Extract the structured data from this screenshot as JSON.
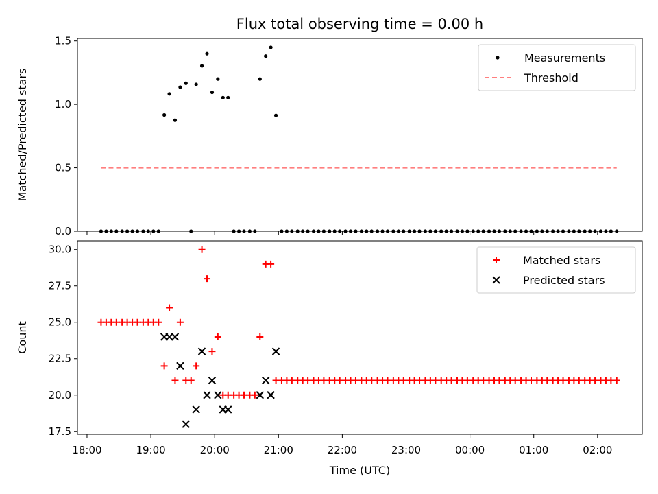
{
  "title": "Flux total observing time = 0.00 h",
  "xlabel": "Time (UTC)",
  "x_ticks": [
    "18:00",
    "19:00",
    "20:00",
    "21:00",
    "22:00",
    "23:00",
    "00:00",
    "01:00",
    "02:00"
  ],
  "chart_data": [
    {
      "type": "scatter",
      "ylabel": "Matched/Predicted stars",
      "ylim": [
        0,
        1.52
      ],
      "y_ticks": [
        "0.0",
        "0.5",
        "1.0",
        "1.5"
      ],
      "x_unit": "hours after 18:00 UTC",
      "legend_position": "top-right",
      "series": [
        {
          "name": "Measurements",
          "marker": "dot",
          "color": "#000000",
          "points": [
            [
              0.22,
              0
            ],
            [
              0.3,
              0
            ],
            [
              0.38,
              0
            ],
            [
              0.46,
              0
            ],
            [
              0.55,
              0
            ],
            [
              0.63,
              0
            ],
            [
              0.71,
              0
            ],
            [
              0.79,
              0
            ],
            [
              0.88,
              0
            ],
            [
              0.96,
              0
            ],
            [
              1.04,
              0
            ],
            [
              1.12,
              0
            ],
            [
              1.21,
              0.917
            ],
            [
              1.29,
              1.083
            ],
            [
              1.38,
              0.875
            ],
            [
              1.46,
              1.136
            ],
            [
              1.55,
              1.167
            ],
            [
              1.63,
              0
            ],
            [
              1.71,
              1.158
            ],
            [
              1.8,
              1.304
            ],
            [
              1.88,
              1.4
            ],
            [
              1.96,
              1.095
            ],
            [
              2.05,
              1.2
            ],
            [
              2.13,
              1.053
            ],
            [
              2.21,
              1.053
            ],
            [
              2.3,
              0
            ],
            [
              2.38,
              0
            ],
            [
              2.46,
              0
            ],
            [
              2.55,
              0
            ],
            [
              2.63,
              0
            ],
            [
              2.71,
              1.2
            ],
            [
              2.8,
              1.381
            ],
            [
              2.88,
              1.45
            ],
            [
              2.96,
              0.913
            ],
            [
              3.05,
              0
            ],
            [
              3.13,
              0
            ],
            [
              3.21,
              0
            ],
            [
              3.3,
              0
            ],
            [
              3.38,
              0
            ],
            [
              3.46,
              0
            ],
            [
              3.55,
              0
            ],
            [
              3.63,
              0
            ],
            [
              3.71,
              0
            ],
            [
              3.8,
              0
            ],
            [
              3.88,
              0
            ],
            [
              3.96,
              0
            ],
            [
              4.05,
              0
            ],
            [
              4.13,
              0
            ],
            [
              4.21,
              0
            ],
            [
              4.3,
              0
            ],
            [
              4.38,
              0
            ],
            [
              4.46,
              0
            ],
            [
              4.55,
              0
            ],
            [
              4.63,
              0
            ],
            [
              4.71,
              0
            ],
            [
              4.8,
              0
            ],
            [
              4.88,
              0
            ],
            [
              4.96,
              0
            ],
            [
              5.05,
              0
            ],
            [
              5.13,
              0
            ],
            [
              5.21,
              0
            ],
            [
              5.3,
              0
            ],
            [
              5.38,
              0
            ],
            [
              5.46,
              0
            ],
            [
              5.55,
              0
            ],
            [
              5.63,
              0
            ],
            [
              5.71,
              0
            ],
            [
              5.8,
              0
            ],
            [
              5.88,
              0
            ],
            [
              5.96,
              0
            ],
            [
              6.05,
              0
            ],
            [
              6.13,
              0
            ],
            [
              6.21,
              0
            ],
            [
              6.3,
              0
            ],
            [
              6.38,
              0
            ],
            [
              6.46,
              0
            ],
            [
              6.55,
              0
            ],
            [
              6.63,
              0
            ],
            [
              6.71,
              0
            ],
            [
              6.8,
              0
            ],
            [
              6.88,
              0
            ],
            [
              6.96,
              0
            ],
            [
              7.05,
              0
            ],
            [
              7.13,
              0
            ],
            [
              7.21,
              0
            ],
            [
              7.3,
              0
            ],
            [
              7.38,
              0
            ],
            [
              7.46,
              0
            ],
            [
              7.55,
              0
            ],
            [
              7.63,
              0
            ],
            [
              7.71,
              0
            ],
            [
              7.8,
              0
            ],
            [
              7.88,
              0
            ],
            [
              7.96,
              0
            ],
            [
              8.05,
              0
            ],
            [
              8.13,
              0
            ],
            [
              8.21,
              0
            ],
            [
              8.3,
              0
            ]
          ]
        },
        {
          "name": "Threshold",
          "type": "line",
          "style": "dashed",
          "color": "#ff7f7f",
          "x": [
            0.22,
            8.3
          ],
          "y": [
            0.5,
            0.5
          ]
        }
      ]
    },
    {
      "type": "scatter",
      "ylabel": "Count",
      "ylim": [
        17.3,
        30.6
      ],
      "y_ticks": [
        "17.5",
        "20.0",
        "22.5",
        "25.0",
        "27.5",
        "30.0"
      ],
      "x_unit": "hours after 18:00 UTC",
      "legend_position": "top-right",
      "series": [
        {
          "name": "Matched stars",
          "marker": "plus",
          "color": "#ff0000",
          "points": [
            [
              0.22,
              25
            ],
            [
              0.3,
              25
            ],
            [
              0.38,
              25
            ],
            [
              0.46,
              25
            ],
            [
              0.55,
              25
            ],
            [
              0.63,
              25
            ],
            [
              0.71,
              25
            ],
            [
              0.79,
              25
            ],
            [
              0.88,
              25
            ],
            [
              0.96,
              25
            ],
            [
              1.04,
              25
            ],
            [
              1.12,
              25
            ],
            [
              1.21,
              22
            ],
            [
              1.29,
              26
            ],
            [
              1.38,
              21
            ],
            [
              1.46,
              25
            ],
            [
              1.55,
              21
            ],
            [
              1.63,
              21
            ],
            [
              1.71,
              22
            ],
            [
              1.8,
              30
            ],
            [
              1.88,
              28
            ],
            [
              1.96,
              23
            ],
            [
              2.05,
              24
            ],
            [
              2.13,
              20
            ],
            [
              2.21,
              20
            ],
            [
              2.3,
              20
            ],
            [
              2.38,
              20
            ],
            [
              2.46,
              20
            ],
            [
              2.55,
              20
            ],
            [
              2.63,
              20
            ],
            [
              2.71,
              24
            ],
            [
              2.8,
              29
            ],
            [
              2.88,
              29
            ],
            [
              2.96,
              21
            ],
            [
              3.05,
              21
            ],
            [
              3.13,
              21
            ],
            [
              3.21,
              21
            ],
            [
              3.3,
              21
            ],
            [
              3.38,
              21
            ],
            [
              3.46,
              21
            ],
            [
              3.55,
              21
            ],
            [
              3.63,
              21
            ],
            [
              3.71,
              21
            ],
            [
              3.8,
              21
            ],
            [
              3.88,
              21
            ],
            [
              3.96,
              21
            ],
            [
              4.05,
              21
            ],
            [
              4.13,
              21
            ],
            [
              4.21,
              21
            ],
            [
              4.3,
              21
            ],
            [
              4.38,
              21
            ],
            [
              4.46,
              21
            ],
            [
              4.55,
              21
            ],
            [
              4.63,
              21
            ],
            [
              4.71,
              21
            ],
            [
              4.8,
              21
            ],
            [
              4.88,
              21
            ],
            [
              4.96,
              21
            ],
            [
              5.05,
              21
            ],
            [
              5.13,
              21
            ],
            [
              5.21,
              21
            ],
            [
              5.3,
              21
            ],
            [
              5.38,
              21
            ],
            [
              5.46,
              21
            ],
            [
              5.55,
              21
            ],
            [
              5.63,
              21
            ],
            [
              5.71,
              21
            ],
            [
              5.8,
              21
            ],
            [
              5.88,
              21
            ],
            [
              5.96,
              21
            ],
            [
              6.05,
              21
            ],
            [
              6.13,
              21
            ],
            [
              6.21,
              21
            ],
            [
              6.3,
              21
            ],
            [
              6.38,
              21
            ],
            [
              6.46,
              21
            ],
            [
              6.55,
              21
            ],
            [
              6.63,
              21
            ],
            [
              6.71,
              21
            ],
            [
              6.8,
              21
            ],
            [
              6.88,
              21
            ],
            [
              6.96,
              21
            ],
            [
              7.05,
              21
            ],
            [
              7.13,
              21
            ],
            [
              7.21,
              21
            ],
            [
              7.3,
              21
            ],
            [
              7.38,
              21
            ],
            [
              7.46,
              21
            ],
            [
              7.55,
              21
            ],
            [
              7.63,
              21
            ],
            [
              7.71,
              21
            ],
            [
              7.8,
              21
            ],
            [
              7.88,
              21
            ],
            [
              7.96,
              21
            ],
            [
              8.05,
              21
            ],
            [
              8.13,
              21
            ],
            [
              8.21,
              21
            ],
            [
              8.3,
              21
            ]
          ]
        },
        {
          "name": "Predicted stars",
          "marker": "x",
          "color": "#000000",
          "points": [
            [
              1.21,
              24
            ],
            [
              1.29,
              24
            ],
            [
              1.38,
              24
            ],
            [
              1.46,
              22
            ],
            [
              1.55,
              18
            ],
            [
              1.71,
              19
            ],
            [
              1.8,
              23
            ],
            [
              1.88,
              20
            ],
            [
              1.96,
              21
            ],
            [
              2.05,
              20
            ],
            [
              2.13,
              19
            ],
            [
              2.21,
              19
            ],
            [
              2.71,
              20
            ],
            [
              2.8,
              21
            ],
            [
              2.88,
              20
            ],
            [
              2.96,
              23
            ]
          ]
        }
      ]
    }
  ]
}
